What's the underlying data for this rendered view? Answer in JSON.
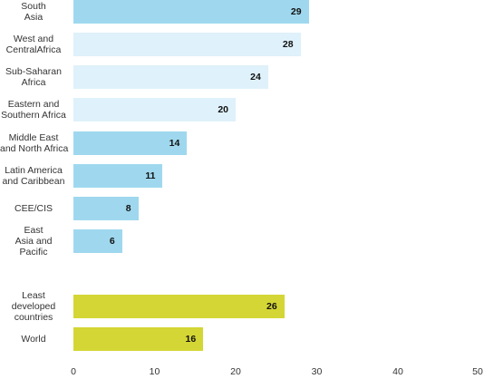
{
  "chart_data": {
    "type": "bar",
    "orientation": "horizontal",
    "categories": [
      [
        "South",
        "Asia"
      ],
      [
        "West and",
        "CentralAfrica"
      ],
      [
        "Sub-Saharan",
        "Africa"
      ],
      [
        "Eastern and",
        "Southern Africa"
      ],
      [
        "Middle East",
        "and North Africa"
      ],
      [
        "Latin America",
        "and Caribbean"
      ],
      [
        "CEE/CIS"
      ],
      [
        "East",
        "Asia and",
        "Pacific"
      ],
      [
        "Least",
        "developed",
        "countries"
      ],
      [
        "World"
      ]
    ],
    "values": [
      29,
      28,
      24,
      20,
      14,
      11,
      8,
      6,
      26,
      16
    ],
    "bar_colors": [
      "#9fd8ee",
      "#dff1fa",
      "#dff1fa",
      "#dff1fa",
      "#9fd8ee",
      "#9fd8ee",
      "#9fd8ee",
      "#9fd8ee",
      "#d4d635",
      "#d4d635"
    ],
    "xlim": [
      0,
      50
    ],
    "xticks": [
      0,
      10,
      20,
      30,
      40,
      50
    ],
    "grid": false,
    "title": "",
    "xlabel": "",
    "ylabel": ""
  }
}
